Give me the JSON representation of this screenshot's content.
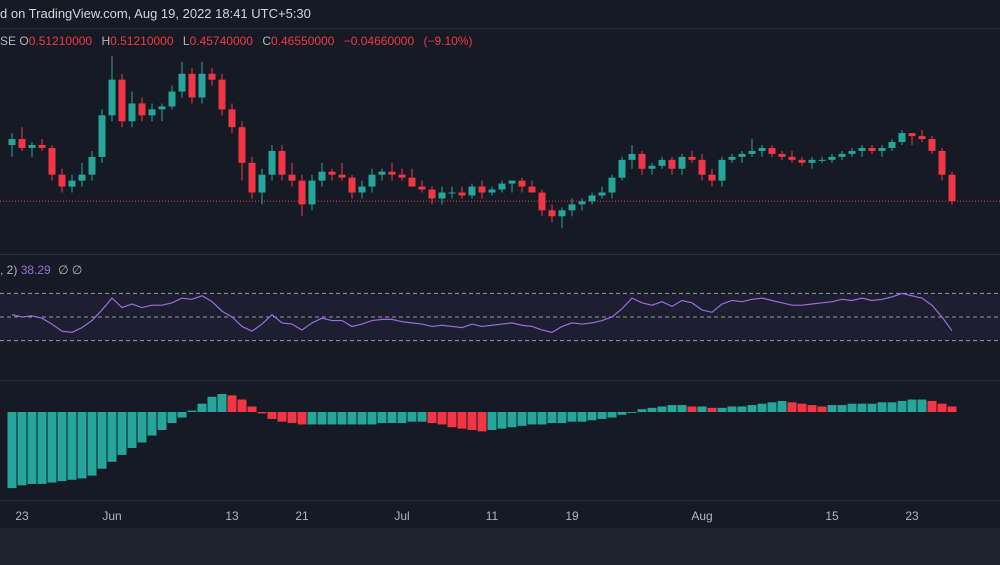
{
  "header": {
    "text": "d on TradingView.com, Aug 19, 2022 18:41 UTC+5:30"
  },
  "ohlc": {
    "prefix": "SE",
    "open_label": "O",
    "open": "0.51210000",
    "high_label": "H",
    "high": "0.51210000",
    "low_label": "L",
    "low": "0.45740000",
    "close_label": "C",
    "close": "0.46550000",
    "change": "−0.04660000",
    "change_pct": "(−9.10%)"
  },
  "rsi_legend": {
    "prefix": ", 2)",
    "value": "38.29",
    "extra1": "∅",
    "extra2": "∅"
  },
  "colors": {
    "up": "#26a69a",
    "down": "#f23645",
    "rsi": "#9c6ade",
    "background": "#161a25"
  },
  "chart_data": [
    {
      "type": "candlestick",
      "title": "",
      "ylim": [
        0.4,
        0.72
      ],
      "last_price": 0.4655,
      "candles": [
        [
          0.56,
          0.58,
          0.54,
          0.57
        ],
        [
          0.57,
          0.59,
          0.55,
          0.555
        ],
        [
          0.555,
          0.565,
          0.54,
          0.56
        ],
        [
          0.56,
          0.57,
          0.55,
          0.555
        ],
        [
          0.555,
          0.56,
          0.5,
          0.51
        ],
        [
          0.51,
          0.52,
          0.48,
          0.49
        ],
        [
          0.49,
          0.51,
          0.48,
          0.5
        ],
        [
          0.5,
          0.53,
          0.49,
          0.51
        ],
        [
          0.51,
          0.55,
          0.5,
          0.54
        ],
        [
          0.54,
          0.62,
          0.53,
          0.61
        ],
        [
          0.61,
          0.71,
          0.6,
          0.67
        ],
        [
          0.67,
          0.68,
          0.59,
          0.6
        ],
        [
          0.6,
          0.65,
          0.59,
          0.63
        ],
        [
          0.63,
          0.64,
          0.6,
          0.61
        ],
        [
          0.61,
          0.63,
          0.6,
          0.62
        ],
        [
          0.62,
          0.63,
          0.6,
          0.625
        ],
        [
          0.625,
          0.66,
          0.62,
          0.65
        ],
        [
          0.65,
          0.7,
          0.64,
          0.68
        ],
        [
          0.68,
          0.69,
          0.63,
          0.64
        ],
        [
          0.64,
          0.7,
          0.63,
          0.68
        ],
        [
          0.68,
          0.69,
          0.66,
          0.67
        ],
        [
          0.67,
          0.68,
          0.61,
          0.62
        ],
        [
          0.62,
          0.63,
          0.58,
          0.59
        ],
        [
          0.59,
          0.6,
          0.5,
          0.53
        ],
        [
          0.53,
          0.54,
          0.47,
          0.48
        ],
        [
          0.48,
          0.52,
          0.46,
          0.51
        ],
        [
          0.51,
          0.56,
          0.5,
          0.55
        ],
        [
          0.55,
          0.56,
          0.5,
          0.51
        ],
        [
          0.51,
          0.53,
          0.49,
          0.5
        ],
        [
          0.5,
          0.51,
          0.44,
          0.46
        ],
        [
          0.46,
          0.51,
          0.45,
          0.5
        ],
        [
          0.5,
          0.53,
          0.49,
          0.515
        ],
        [
          0.515,
          0.52,
          0.5,
          0.51
        ],
        [
          0.51,
          0.53,
          0.5,
          0.505
        ],
        [
          0.505,
          0.51,
          0.47,
          0.48
        ],
        [
          0.48,
          0.5,
          0.47,
          0.49
        ],
        [
          0.49,
          0.52,
          0.48,
          0.51
        ],
        [
          0.51,
          0.52,
          0.5,
          0.515
        ],
        [
          0.515,
          0.53,
          0.5,
          0.51
        ],
        [
          0.51,
          0.52,
          0.5,
          0.505
        ],
        [
          0.505,
          0.52,
          0.49,
          0.49
        ],
        [
          0.49,
          0.5,
          0.48,
          0.485
        ],
        [
          0.485,
          0.49,
          0.46,
          0.47
        ],
        [
          0.47,
          0.49,
          0.46,
          0.48
        ],
        [
          0.48,
          0.49,
          0.47,
          0.48
        ],
        [
          0.48,
          0.49,
          0.47,
          0.475
        ],
        [
          0.475,
          0.495,
          0.47,
          0.49
        ],
        [
          0.49,
          0.5,
          0.47,
          0.48
        ],
        [
          0.48,
          0.49,
          0.475,
          0.485
        ],
        [
          0.485,
          0.5,
          0.48,
          0.495
        ],
        [
          0.495,
          0.5,
          0.48,
          0.5
        ],
        [
          0.5,
          0.505,
          0.48,
          0.49
        ],
        [
          0.49,
          0.5,
          0.48,
          0.48
        ],
        [
          0.48,
          0.485,
          0.44,
          0.45
        ],
        [
          0.45,
          0.46,
          0.43,
          0.44
        ],
        [
          0.44,
          0.455,
          0.42,
          0.45
        ],
        [
          0.45,
          0.47,
          0.44,
          0.46
        ],
        [
          0.46,
          0.47,
          0.45,
          0.465
        ],
        [
          0.465,
          0.48,
          0.46,
          0.475
        ],
        [
          0.475,
          0.49,
          0.47,
          0.48
        ],
        [
          0.48,
          0.51,
          0.47,
          0.505
        ],
        [
          0.505,
          0.54,
          0.5,
          0.535
        ],
        [
          0.535,
          0.56,
          0.52,
          0.545
        ],
        [
          0.545,
          0.55,
          0.51,
          0.52
        ],
        [
          0.52,
          0.53,
          0.51,
          0.525
        ],
        [
          0.525,
          0.54,
          0.52,
          0.535
        ],
        [
          0.535,
          0.54,
          0.51,
          0.52
        ],
        [
          0.52,
          0.545,
          0.51,
          0.54
        ],
        [
          0.54,
          0.55,
          0.53,
          0.535
        ],
        [
          0.535,
          0.545,
          0.5,
          0.51
        ],
        [
          0.51,
          0.52,
          0.49,
          0.5
        ],
        [
          0.5,
          0.54,
          0.49,
          0.535
        ],
        [
          0.535,
          0.545,
          0.53,
          0.54
        ],
        [
          0.54,
          0.55,
          0.53,
          0.545
        ],
        [
          0.545,
          0.57,
          0.54,
          0.55
        ],
        [
          0.55,
          0.56,
          0.54,
          0.555
        ],
        [
          0.555,
          0.56,
          0.54,
          0.545
        ],
        [
          0.545,
          0.55,
          0.535,
          0.54
        ],
        [
          0.54,
          0.55,
          0.53,
          0.535
        ],
        [
          0.535,
          0.54,
          0.525,
          0.53
        ],
        [
          0.53,
          0.54,
          0.52,
          0.535
        ],
        [
          0.535,
          0.54,
          0.53,
          0.535
        ],
        [
          0.535,
          0.545,
          0.53,
          0.54
        ],
        [
          0.54,
          0.55,
          0.535,
          0.545
        ],
        [
          0.545,
          0.555,
          0.54,
          0.55
        ],
        [
          0.55,
          0.56,
          0.54,
          0.555
        ],
        [
          0.555,
          0.56,
          0.545,
          0.55
        ],
        [
          0.55,
          0.56,
          0.54,
          0.555
        ],
        [
          0.555,
          0.57,
          0.55,
          0.565
        ],
        [
          0.565,
          0.585,
          0.56,
          0.58
        ],
        [
          0.58,
          0.58,
          0.56,
          0.575
        ],
        [
          0.575,
          0.585,
          0.565,
          0.57
        ],
        [
          0.57,
          0.575,
          0.545,
          0.55
        ],
        [
          0.55,
          0.555,
          0.5,
          0.51
        ],
        [
          0.51,
          0.515,
          0.46,
          0.4655
        ]
      ]
    },
    {
      "type": "line",
      "title": "",
      "series_label": "38.29",
      "ylim": [
        0,
        100
      ],
      "levels": [
        70,
        50,
        30
      ],
      "values": [
        52,
        50,
        51,
        49,
        44,
        38,
        37,
        41,
        47,
        56,
        66,
        58,
        61,
        58,
        60,
        60,
        62,
        66,
        65,
        68,
        63,
        55,
        50,
        42,
        38,
        44,
        52,
        45,
        44,
        39,
        45,
        49,
        47,
        47,
        42,
        44,
        47,
        48,
        48,
        46,
        45,
        44,
        42,
        43,
        42,
        41,
        44,
        42,
        43,
        44,
        45,
        43,
        42,
        39,
        37,
        42,
        45,
        44,
        45,
        47,
        50,
        57,
        66,
        62,
        60,
        63,
        59,
        64,
        62,
        56,
        54,
        61,
        64,
        63,
        65,
        66,
        64,
        62,
        60,
        60,
        61,
        62,
        63,
        65,
        64,
        66,
        64,
        65,
        67,
        70,
        68,
        66,
        60,
        50,
        38.29
      ]
    },
    {
      "type": "bar",
      "title": "",
      "values": [
        -0.055,
        -0.053,
        -0.052,
        -0.052,
        -0.051,
        -0.05,
        -0.049,
        -0.048,
        -0.046,
        -0.041,
        -0.036,
        -0.031,
        -0.026,
        -0.022,
        -0.017,
        -0.013,
        -0.008,
        -0.004,
        0.001,
        0.006,
        0.011,
        0.013,
        0.012,
        0.009,
        0.004,
        -0.001,
        -0.005,
        -0.007,
        -0.008,
        -0.009,
        -0.009,
        -0.009,
        -0.009,
        -0.009,
        -0.009,
        -0.009,
        -0.009,
        -0.008,
        -0.008,
        -0.008,
        -0.007,
        -0.007,
        -0.008,
        -0.009,
        -0.011,
        -0.012,
        -0.013,
        -0.014,
        -0.013,
        -0.012,
        -0.011,
        -0.01,
        -0.009,
        -0.009,
        -0.008,
        -0.008,
        -0.007,
        -0.007,
        -0.006,
        -0.005,
        -0.004,
        -0.002,
        0.0,
        0.002,
        0.003,
        0.004,
        0.005,
        0.005,
        0.004,
        0.004,
        0.003,
        0.003,
        0.004,
        0.004,
        0.005,
        0.006,
        0.007,
        0.008,
        0.007,
        0.006,
        0.005,
        0.004,
        0.005,
        0.005,
        0.006,
        0.006,
        0.006,
        0.007,
        0.007,
        0.008,
        0.009,
        0.009,
        0.008,
        0.006,
        0.004
      ],
      "up_colors": "increasing bar of positive/negative momentum uses green; decreasing uses red"
    }
  ],
  "xaxis": {
    "ticks": [
      {
        "label": "23",
        "index": 1
      },
      {
        "label": "Jun",
        "index": 10
      },
      {
        "label": "13",
        "index": 22
      },
      {
        "label": "21",
        "index": 29
      },
      {
        "label": "Jul",
        "index": 39
      },
      {
        "label": "11",
        "index": 48
      },
      {
        "label": "19",
        "index": 56
      },
      {
        "label": "Aug",
        "index": 69
      },
      {
        "label": "15",
        "index": 82
      },
      {
        "label": "23",
        "index": 90
      }
    ]
  }
}
